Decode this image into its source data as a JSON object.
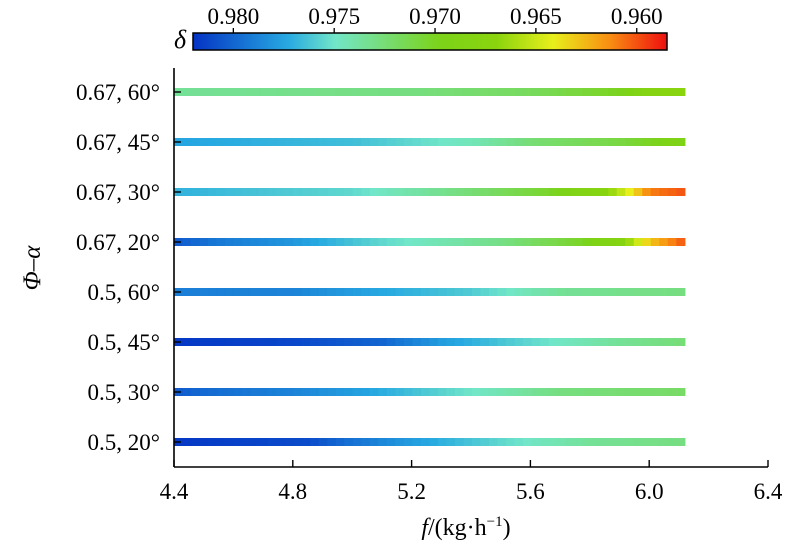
{
  "chart_data": {
    "type": "heatmap",
    "xlabel_prefix": "f",
    "xlabel_units": "/(kg·h",
    "xlabel_exp": "−1",
    "xlabel_close": ")",
    "ylabel_main": "Φ",
    "ylabel_dash": "–",
    "ylabel_alpha": "α",
    "xlim": [
      4.4,
      6.4
    ],
    "x_ticks": [
      "4.4",
      "4.8",
      "5.2",
      "5.6",
      "6.0",
      "6.4"
    ],
    "x_tick_values": [
      4.4,
      4.8,
      5.2,
      5.6,
      6.0,
      6.4
    ],
    "x_range": [
      4.4,
      6.12
    ],
    "colorbar": {
      "label": "δ",
      "range": [
        0.982,
        0.9585
      ],
      "ticks": [
        "0.980",
        "0.975",
        "0.970",
        "0.965",
        "0.960"
      ],
      "tick_values": [
        0.98,
        0.975,
        0.97,
        0.965,
        0.96
      ],
      "placement": "top"
    },
    "categories": [
      "0.67, 60°",
      "0.67, 45°",
      "0.67, 30°",
      "0.67, 20°",
      "0.5, 60°",
      "0.5, 45°",
      "0.5, 30°",
      "0.5, 20°"
    ],
    "series": [
      {
        "x": [
          4.4,
          5.2,
          5.6,
          5.9,
          6.0,
          6.12
        ],
        "values": [
          0.9735,
          0.9728,
          0.9718,
          0.97,
          0.968,
          0.967
        ]
      },
      {
        "x": [
          4.4,
          5.0,
          5.4,
          5.6,
          5.9,
          6.12
        ],
        "values": [
          0.9775,
          0.9765,
          0.9745,
          0.9725,
          0.971,
          0.969
        ]
      },
      {
        "x": [
          4.4,
          5.0,
          5.4,
          5.65,
          5.85,
          5.95,
          6.0,
          6.12
        ],
        "values": [
          0.977,
          0.9755,
          0.9725,
          0.9705,
          0.9675,
          0.9635,
          0.961,
          0.96
        ]
      },
      {
        "x": [
          4.4,
          4.55,
          4.8,
          5.1,
          5.5,
          5.75,
          5.9,
          6.0,
          6.12
        ],
        "values": [
          0.9805,
          0.9792,
          0.978,
          0.9755,
          0.973,
          0.9705,
          0.968,
          0.963,
          0.96
        ]
      },
      {
        "x": [
          4.4,
          4.8,
          5.0,
          5.4,
          5.7,
          6.12
        ],
        "values": [
          0.979,
          0.9788,
          0.9778,
          0.976,
          0.9735,
          0.9728
        ]
      },
      {
        "x": [
          4.4,
          4.8,
          5.1,
          5.3,
          5.6,
          5.9,
          6.12
        ],
        "values": [
          0.9818,
          0.9812,
          0.98,
          0.9778,
          0.9755,
          0.9735,
          0.9725
        ]
      },
      {
        "x": [
          4.4,
          4.5,
          4.8,
          5.05,
          5.4,
          5.7,
          6.12
        ],
        "values": [
          0.9805,
          0.9798,
          0.9788,
          0.9775,
          0.975,
          0.9728,
          0.972
        ]
      },
      {
        "x": [
          4.4,
          4.85,
          5.0,
          5.2,
          5.5,
          5.8,
          6.12
        ],
        "values": [
          0.9818,
          0.981,
          0.9795,
          0.9778,
          0.9755,
          0.9735,
          0.9728
        ]
      }
    ]
  }
}
